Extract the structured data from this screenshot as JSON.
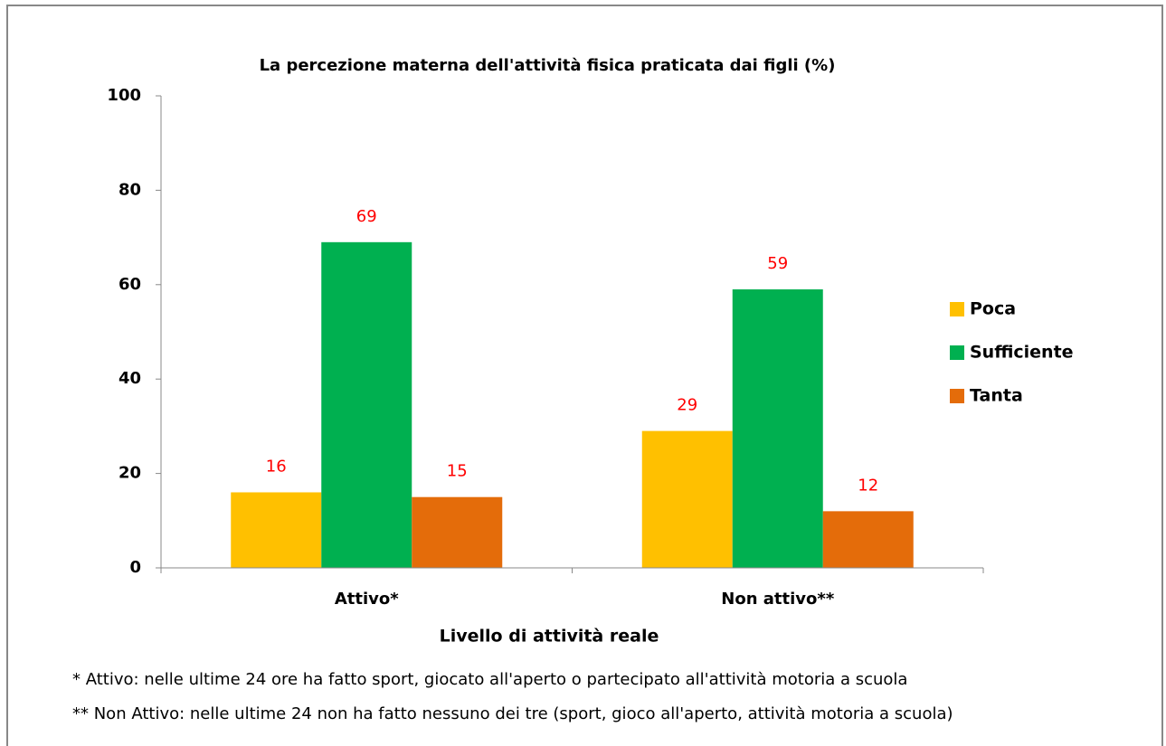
{
  "chart_data": {
    "type": "bar",
    "title": "La percezione materna dell'attività fisica praticata dai figli (%)",
    "x_label": "Livello di attività reale",
    "categories": [
      "Attivo*",
      "Non attivo**"
    ],
    "series": [
      {
        "name": "Poca",
        "color": "#ffc000",
        "values": [
          16,
          29
        ]
      },
      {
        "name": "Sufficiente",
        "color": "#00b050",
        "values": [
          69,
          59
        ]
      },
      {
        "name": "Tanta",
        "color": "#e46c0a",
        "values": [
          15,
          12
        ]
      }
    ],
    "ylim": [
      0,
      100
    ],
    "yticks": [
      0,
      20,
      40,
      60,
      80,
      100
    ],
    "grid": false,
    "legend": "right",
    "notes": [
      "* Attivo: nelle ultime 24 ore ha fatto sport, giocato all'aperto o partecipato all'attività motoria a scuola",
      "** Non Attivo: nelle ultime 24 non ha fatto nessuno dei tre (sport, gioco all'aperto, attività motoria a scuola)"
    ]
  }
}
